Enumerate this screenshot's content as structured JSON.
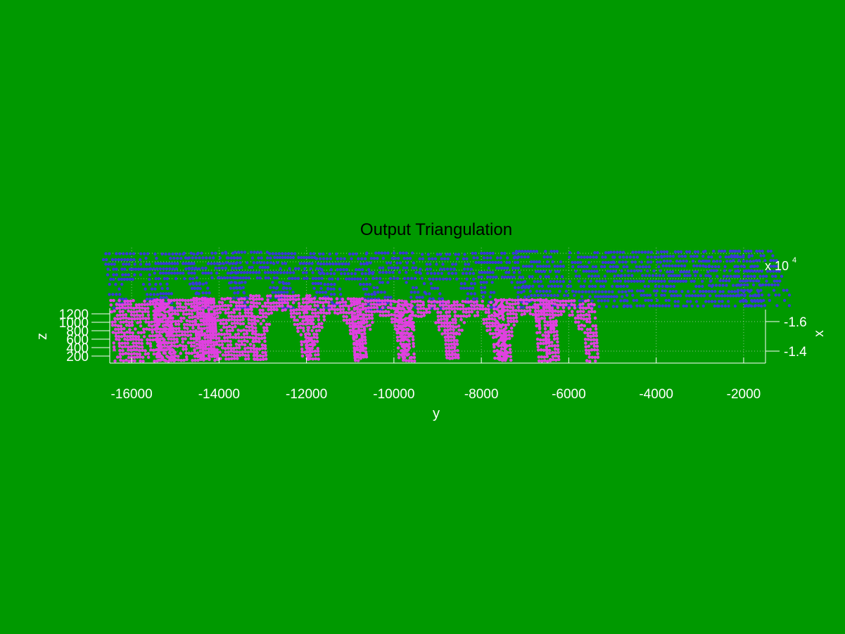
{
  "figure": {
    "background": "#009900"
  },
  "chart_data": {
    "type": "scatter",
    "projection": "3d",
    "title": "Output Triangulation",
    "xlabel": "y",
    "ylabel": "z",
    "zlabel": "x",
    "x_axis": {
      "ticks": [
        -16000,
        -14000,
        -12000,
        -10000,
        -8000,
        -6000,
        -4000,
        -2000
      ],
      "lim": [
        -16500,
        -1500
      ]
    },
    "z_axis": {
      "ticks": [
        200,
        400,
        600,
        800,
        1000,
        1200
      ],
      "lim": [
        100,
        1250
      ]
    },
    "depth_axis": {
      "tick_labels": [
        "-1.6",
        "-1.4"
      ],
      "multiplier": "x 10",
      "exponent": "4"
    },
    "grid": true,
    "colors": {
      "near": "#e040e0",
      "far": "#3a3ad8",
      "axis": "#ffffff",
      "title": "#000000"
    },
    "series": [
      {
        "color": "#3a3ad8",
        "clusters": [
          {
            "y": -16150,
            "z": 1180
          },
          {
            "y": -15100,
            "z": 1190
          },
          {
            "y": -14200,
            "z": 1200
          },
          {
            "y": -13300,
            "z": 1210
          },
          {
            "y": -12300,
            "z": 1200
          },
          {
            "y": -11200,
            "z": 1180
          },
          {
            "y": -10100,
            "z": 1200
          },
          {
            "y": -8900,
            "z": 1190
          },
          {
            "y": -7700,
            "z": 1210
          },
          {
            "y": -6700,
            "z": 1230
          },
          {
            "y": -5500,
            "z": 1220
          },
          {
            "y": -4500,
            "z": 1230
          },
          {
            "y": -3400,
            "z": 1230
          },
          {
            "y": -2400,
            "z": 1230
          },
          {
            "y": -1800,
            "z": 1240
          }
        ]
      },
      {
        "color": "#e040e0",
        "clusters": [
          {
            "y": -15800,
            "z": 600
          },
          {
            "y": -14800,
            "z": 620
          },
          {
            "y": -13900,
            "z": 650
          },
          {
            "y": -12600,
            "z": 720
          },
          {
            "y": -11400,
            "z": 650
          },
          {
            "y": -10300,
            "z": 600
          },
          {
            "y": -9300,
            "z": 580
          },
          {
            "y": -8200,
            "z": 580
          },
          {
            "y": -7000,
            "z": 620
          },
          {
            "y": -6100,
            "z": 600
          }
        ]
      }
    ]
  }
}
